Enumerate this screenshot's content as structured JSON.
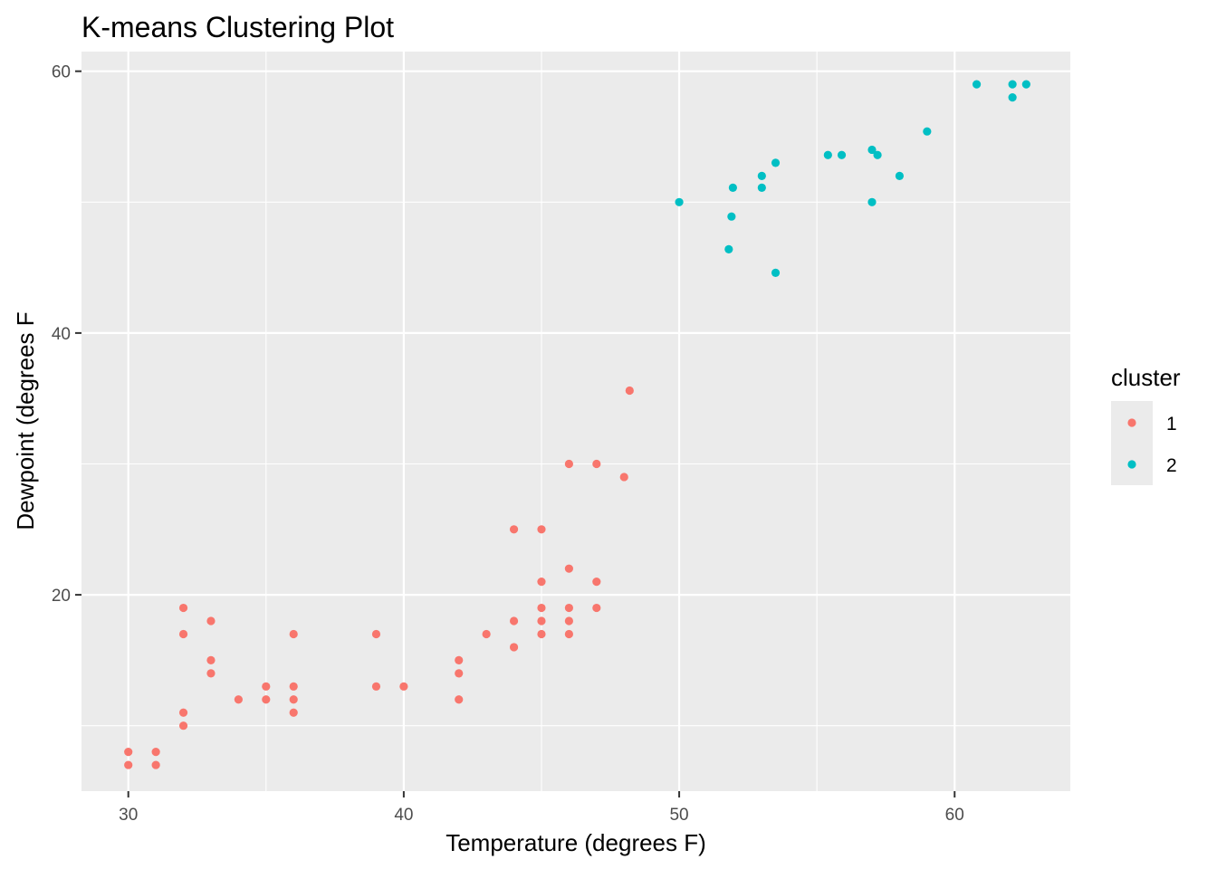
{
  "chart_data": {
    "type": "scatter",
    "title": "K-means Clustering Plot",
    "xlabel": "Temperature (degrees F)",
    "ylabel": "Dewpoint (degrees F",
    "xlim": [
      28.3,
      64.2
    ],
    "ylim": [
      5.0,
      61.5
    ],
    "x_ticks": [
      30,
      40,
      50,
      60
    ],
    "y_ticks": [
      20,
      40,
      60
    ],
    "grid": true,
    "legend": {
      "title": "cluster",
      "position": "right"
    },
    "series": [
      {
        "name": "1",
        "color": "#F8766D",
        "points": [
          [
            30,
            8
          ],
          [
            30,
            7
          ],
          [
            31,
            8
          ],
          [
            31,
            7
          ],
          [
            32,
            19
          ],
          [
            32,
            17
          ],
          [
            32,
            11
          ],
          [
            32,
            10
          ],
          [
            33,
            18
          ],
          [
            33,
            15
          ],
          [
            33,
            14
          ],
          [
            34,
            12
          ],
          [
            35,
            13
          ],
          [
            35,
            12
          ],
          [
            36,
            17
          ],
          [
            36,
            13
          ],
          [
            36,
            12
          ],
          [
            36,
            11
          ],
          [
            39,
            17
          ],
          [
            39,
            13
          ],
          [
            40,
            13
          ],
          [
            42,
            15
          ],
          [
            42,
            14
          ],
          [
            42,
            12
          ],
          [
            43,
            17
          ],
          [
            44,
            25
          ],
          [
            44,
            18
          ],
          [
            44,
            16
          ],
          [
            45,
            25
          ],
          [
            45,
            21
          ],
          [
            45,
            19
          ],
          [
            45,
            18
          ],
          [
            45,
            17
          ],
          [
            46,
            30
          ],
          [
            46,
            22
          ],
          [
            46,
            19
          ],
          [
            46,
            18
          ],
          [
            46,
            17
          ],
          [
            47,
            30
          ],
          [
            47,
            21
          ],
          [
            47,
            19
          ],
          [
            48,
            29
          ],
          [
            48.2,
            35.6
          ]
        ]
      },
      {
        "name": "2",
        "color": "#00BFC4",
        "points": [
          [
            50,
            50
          ],
          [
            51.8,
            46.4
          ],
          [
            51.9,
            48.9
          ],
          [
            51.95,
            51.1
          ],
          [
            53,
            52
          ],
          [
            53,
            51.1
          ],
          [
            53.5,
            44.6
          ],
          [
            53.5,
            53
          ],
          [
            55.4,
            53.6
          ],
          [
            55.9,
            53.6
          ],
          [
            57,
            54
          ],
          [
            57,
            50
          ],
          [
            57.2,
            53.6
          ],
          [
            58,
            52
          ],
          [
            59,
            55.4
          ],
          [
            60.8,
            59
          ],
          [
            62.1,
            59
          ],
          [
            62.1,
            58
          ],
          [
            62.6,
            59
          ]
        ]
      }
    ]
  }
}
